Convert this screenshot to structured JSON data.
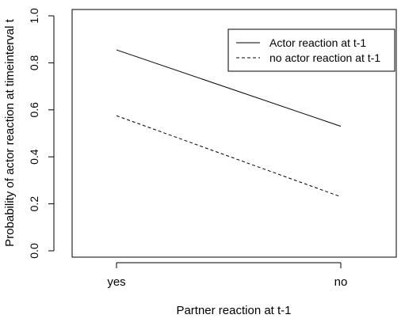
{
  "chart_data": {
    "type": "line",
    "xlabel": "Partner reaction at t-1",
    "ylabel": "Probability of actor reaction at timeinterval t",
    "categories": [
      "yes",
      "no"
    ],
    "ylim": [
      0.0,
      1.0
    ],
    "yticks": [
      "0.0",
      "0.2",
      "0.4",
      "0.6",
      "0.8",
      "1.0"
    ],
    "grid": false,
    "legend_position": "top-right",
    "series": [
      {
        "name": "Actor reaction at t-1",
        "values": [
          0.855,
          0.53
        ],
        "line_style": "solid",
        "color": "#000000"
      },
      {
        "name": "no actor reaction at t-1",
        "values": [
          0.575,
          0.23
        ],
        "line_style": "dashed",
        "color": "#000000"
      }
    ]
  }
}
